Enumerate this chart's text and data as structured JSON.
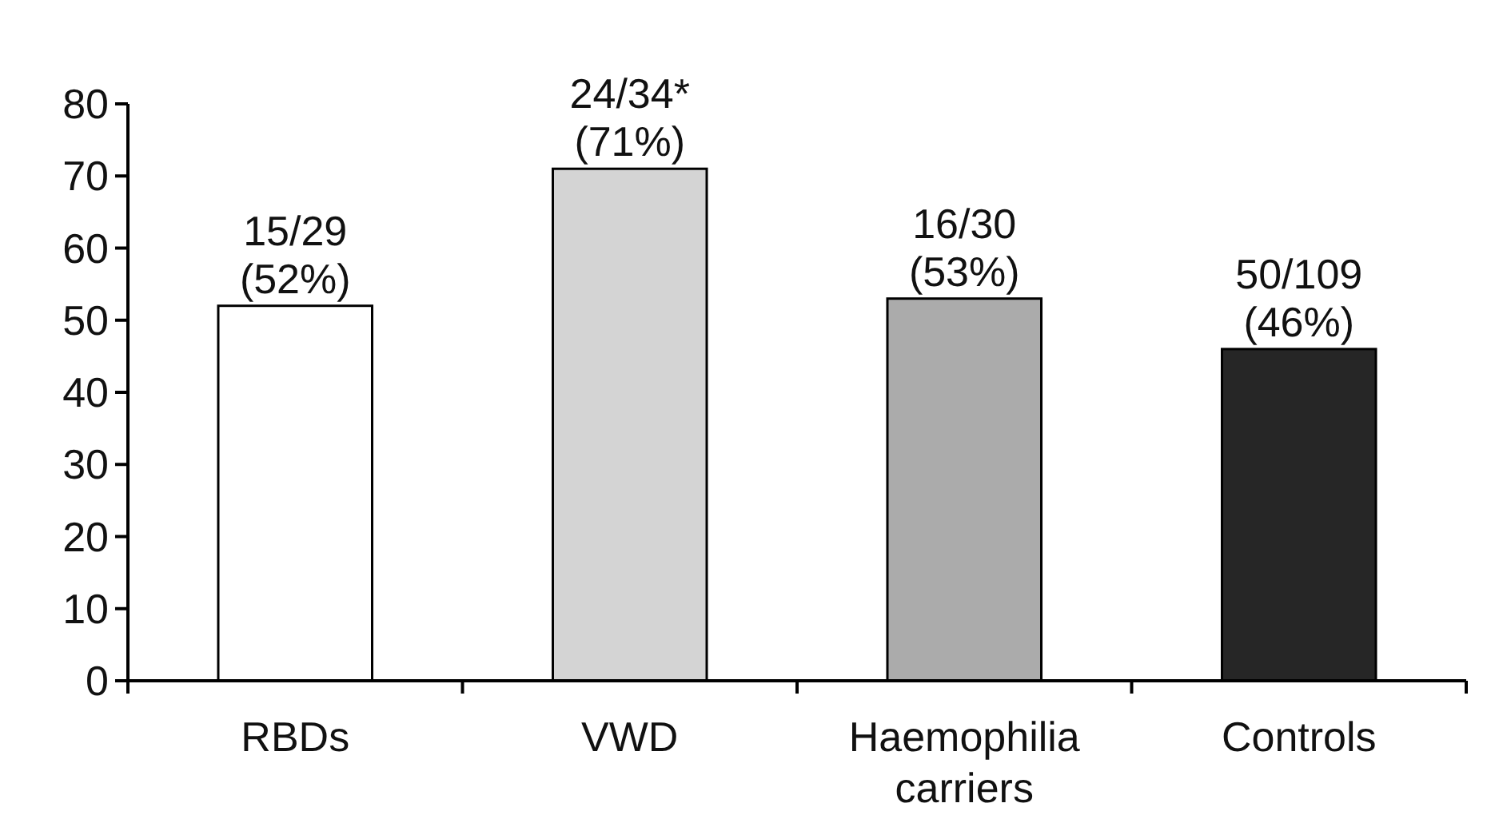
{
  "chart_data": {
    "type": "bar",
    "categories": [
      "RBDs",
      "VWD",
      "Haemophilia carriers",
      "Controls"
    ],
    "values": [
      52,
      71,
      53,
      46
    ],
    "colors": [
      "#ffffff",
      "#d4d4d4",
      "#ababab",
      "#262626"
    ],
    "value_labels": [
      "15/29 (52%)",
      "24/34* (71%)",
      "16/30 (53%)",
      "50/109 (46%)"
    ],
    "ylim": [
      0,
      80
    ],
    "yticks": [
      0,
      10,
      20,
      30,
      40,
      50,
      60,
      70,
      80
    ],
    "grid": false
  }
}
